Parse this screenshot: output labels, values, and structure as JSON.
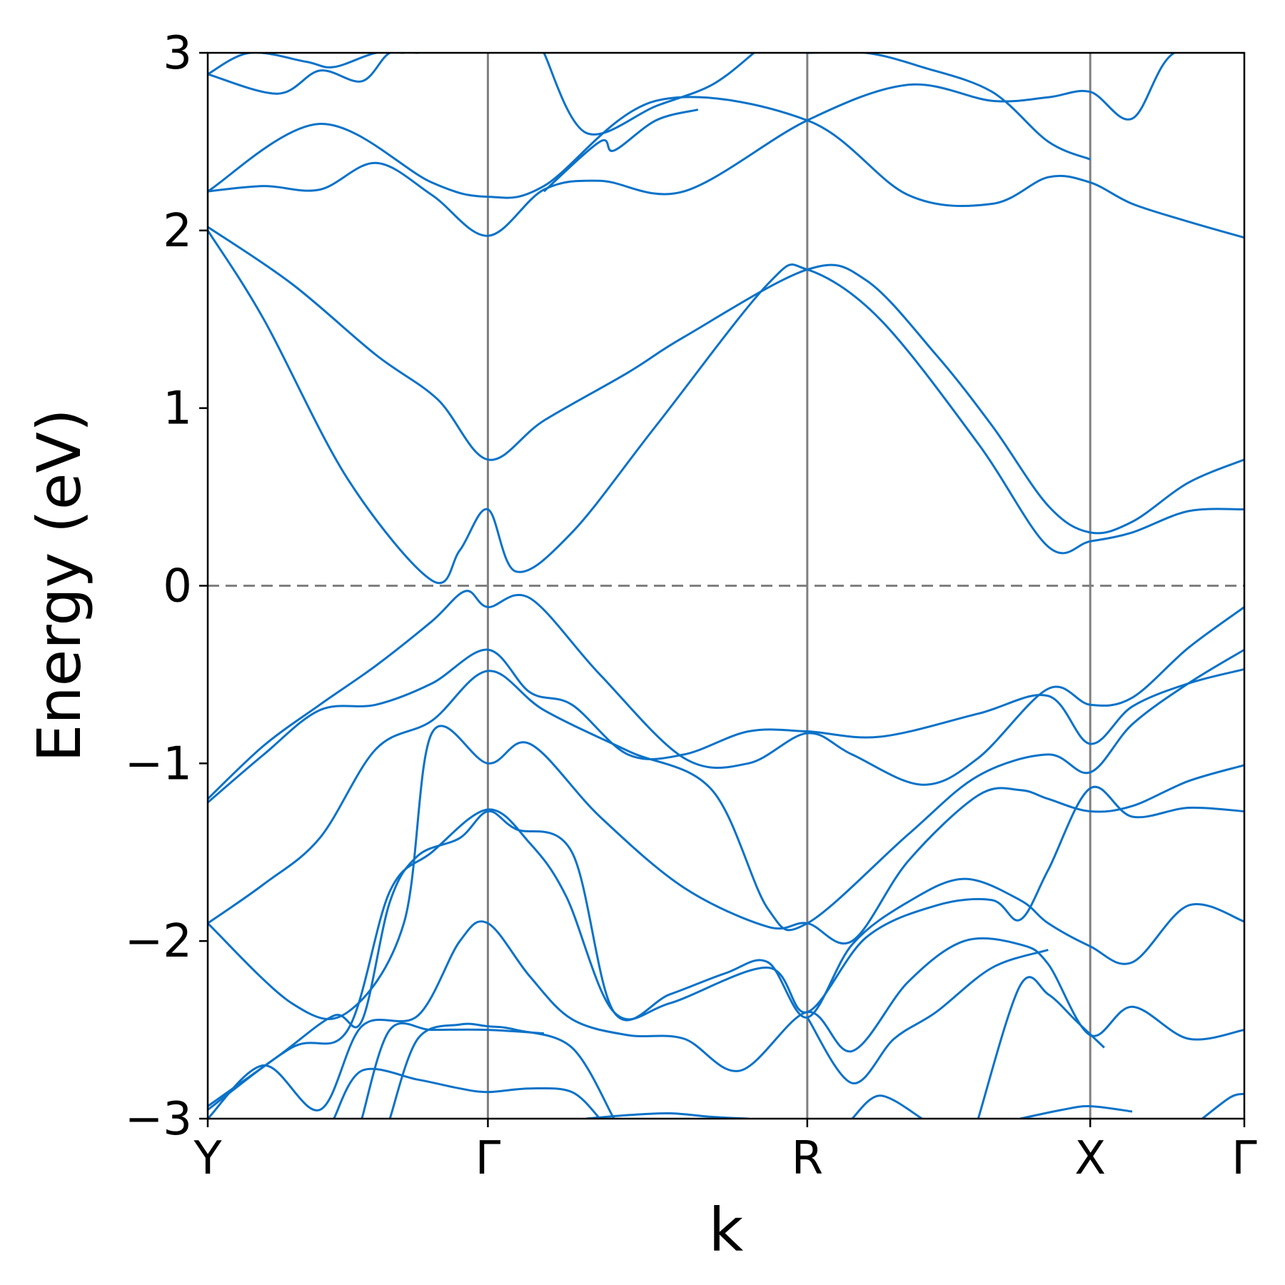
{
  "chart_data": {
    "type": "line",
    "title": "",
    "xlabel": "k",
    "ylabel": "Energy (eV)",
    "ylim": [
      -3,
      3
    ],
    "y_ticks": [
      3,
      2,
      1,
      0,
      -1,
      -2,
      -3
    ],
    "y_tick_labels": [
      "3",
      "2",
      "1",
      "0",
      "−1",
      "−2",
      "−3"
    ],
    "k_path": [
      "Y",
      "Γ",
      "R",
      "X",
      "Γ"
    ],
    "k_positions": [
      0,
      1,
      2.14,
      3.15,
      3.7
    ],
    "fermi_level": 0,
    "grid": "vertical lines at high-symmetry points",
    "colors": {
      "bands": "#0a72c8",
      "symmetry_lines": "#808080",
      "fermi_line": "#808080"
    },
    "bands": [
      {
        "name": "",
        "x": [
          0,
          0.3,
          0.6,
          0.82,
          1,
          1.2,
          1.5,
          1.7,
          2.14,
          2.35,
          2.6,
          2.8,
          3.0,
          3.15,
          3.3,
          3.5,
          3.7
        ],
        "y": [
          2.02,
          1.7,
          1.3,
          1.05,
          0.71,
          0.93,
          1.2,
          1.4,
          1.78,
          1.72,
          1.3,
          0.9,
          0.45,
          0.3,
          0.36,
          0.58,
          0.71
        ]
      },
      {
        "name": "",
        "x": [
          0,
          0.2,
          0.5,
          0.8,
          0.9,
          1,
          1.1,
          1.3,
          1.6,
          2.0,
          2.14,
          2.4,
          2.75,
          3.0,
          3.15,
          3.3,
          3.5,
          3.7
        ],
        "y": [
          2.0,
          1.5,
          0.6,
          0.03,
          0.2,
          0.43,
          0.08,
          0.3,
          0.9,
          1.7,
          1.78,
          1.5,
          0.8,
          0.22,
          0.25,
          0.3,
          0.42,
          0.43
        ]
      },
      {
        "name": "",
        "x": [
          0,
          0.4,
          0.8,
          1,
          1.2,
          1.6,
          2.14,
          2.5,
          2.8,
          3.0,
          3.15,
          3.3,
          3.5,
          3.7
        ],
        "y": [
          2.22,
          2.6,
          2.27,
          2.19,
          2.25,
          2.73,
          2.62,
          2.2,
          2.15,
          2.3,
          2.27,
          2.15,
          2.05,
          1.96
        ]
      },
      {
        "name": "",
        "x": [
          0,
          0.2,
          0.4,
          0.6,
          0.8,
          1,
          1.2,
          1.4,
          1.7,
          2.14,
          2.5,
          2.8,
          3.0,
          3.15,
          3.3,
          3.45,
          3.7
        ],
        "y": [
          2.22,
          2.25,
          2.23,
          2.38,
          2.2,
          1.97,
          2.23,
          2.28,
          2.22,
          2.62,
          2.82,
          2.73,
          2.75,
          2.78,
          2.63,
          3.0,
          3.0
        ]
      },
      {
        "name": "",
        "x": [
          0,
          0.2,
          0.4,
          0.6,
          0.8,
          1,
          1.15,
          1.3,
          1.5,
          1.7,
          1.93,
          2.14,
          2.4,
          2.75,
          3.0,
          3.15,
          3.3,
          3.5,
          3.7
        ],
        "y": [
          -1.22,
          -0.95,
          -0.7,
          -0.67,
          -0.55,
          -0.36,
          -0.6,
          -0.67,
          -0.95,
          -0.95,
          -0.82,
          -0.82,
          -0.85,
          -0.72,
          -0.62,
          -0.89,
          -0.68,
          -0.55,
          -0.47
        ]
      },
      {
        "name": "",
        "x": [
          0,
          0.2,
          0.4,
          0.6,
          0.8,
          0.92,
          1,
          1.15,
          1.4,
          1.7,
          1.93,
          2.14,
          2.3,
          2.55,
          2.75,
          3.0,
          3.15,
          3.3,
          3.5,
          3.7
        ],
        "y": [
          -1.2,
          -0.9,
          -0.67,
          -0.45,
          -0.2,
          -0.03,
          -0.12,
          -0.07,
          -0.5,
          -0.97,
          -1.0,
          -0.83,
          -0.95,
          -1.12,
          -0.97,
          -0.58,
          -0.67,
          -0.63,
          -0.35,
          -0.12
        ]
      },
      {
        "name": "",
        "x": [
          0,
          0.2,
          0.4,
          0.6,
          0.8,
          1,
          1.2,
          1.5,
          1.8,
          2.0,
          2.14,
          2.5,
          2.75,
          3.0,
          3.15,
          3.3,
          3.5,
          3.7
        ],
        "y": [
          -1.9,
          -1.68,
          -1.42,
          -0.92,
          -0.76,
          -0.48,
          -0.7,
          -0.93,
          -1.15,
          -1.82,
          -1.9,
          -1.4,
          -1.07,
          -0.95,
          -1.05,
          -0.78,
          -0.55,
          -0.36
        ]
      },
      {
        "name": "",
        "x": [
          0,
          0.3,
          0.5,
          0.7,
          0.8,
          1,
          1.15,
          1.4,
          1.7,
          2.0,
          2.14,
          2.3,
          2.5,
          2.75,
          2.9,
          3.0,
          3.15,
          3.3,
          3.5,
          3.7
        ],
        "y": [
          -1.9,
          -2.35,
          -2.4,
          -1.9,
          -0.83,
          -1.0,
          -0.89,
          -1.3,
          -1.7,
          -1.92,
          -1.9,
          -2.0,
          -1.55,
          -1.18,
          -1.15,
          -1.2,
          -1.27,
          -1.24,
          -1.1,
          -1.01
        ]
      },
      {
        "name": "",
        "x": [
          0,
          0.3,
          0.5,
          0.65,
          0.8,
          1,
          1.15,
          1.28,
          1.45,
          1.65,
          2.0,
          2.14,
          2.35,
          2.6,
          2.8,
          2.9,
          3.0,
          3.15,
          3.3,
          3.5,
          3.7
        ],
        "y": [
          -2.95,
          -2.6,
          -2.5,
          -1.72,
          -1.5,
          -1.26,
          -1.45,
          -1.75,
          -2.4,
          -2.35,
          -2.15,
          -2.4,
          -1.98,
          -1.8,
          -1.77,
          -1.88,
          -1.6,
          -1.14,
          -1.3,
          -1.25,
          -1.27
        ]
      },
      {
        "name": "",
        "x": [
          0,
          0.25,
          0.45,
          0.55,
          0.65,
          0.75,
          0.9,
          1,
          1.1,
          1.3,
          1.45,
          1.65,
          1.85,
          2.0,
          2.14,
          2.3,
          2.5,
          2.7,
          2.9,
          3.0,
          3.15,
          3.3,
          3.5,
          3.7
        ],
        "y": [
          -2.93,
          -2.65,
          -2.42,
          -2.45,
          -1.78,
          -1.52,
          -1.42,
          -1.27,
          -1.37,
          -1.5,
          -2.4,
          -2.3,
          -2.18,
          -2.12,
          -2.43,
          -2.02,
          -1.78,
          -1.65,
          -1.77,
          -1.9,
          -2.03,
          -2.12,
          -1.8,
          -1.89
        ]
      },
      {
        "name": "",
        "x": [
          0,
          0.2,
          0.4,
          0.55,
          0.75,
          0.9,
          1,
          1.15,
          1.3,
          1.5,
          1.7,
          1.9,
          2.14,
          2.3,
          2.5,
          2.7,
          2.9,
          3.0,
          3.15,
          3.3,
          3.5,
          3.7
        ],
        "y": [
          -3.0,
          -2.7,
          -2.95,
          -2.48,
          -2.42,
          -2.0,
          -1.9,
          -2.2,
          -2.44,
          -2.53,
          -2.55,
          -2.73,
          -2.4,
          -2.62,
          -2.23,
          -2.0,
          -2.02,
          -2.13,
          -2.53,
          -2.37,
          -2.55,
          -2.5
        ]
      },
      {
        "name": "",
        "x": [
          0.65,
          0.75,
          0.9,
          1,
          1.1,
          1.3,
          1.45
        ],
        "y": [
          -3.0,
          -2.55,
          -2.47,
          -2.48,
          -2.5,
          -2.6,
          -3.0
        ]
      },
      {
        "name": "",
        "x": [
          0.45,
          0.55,
          0.75,
          0.9,
          1,
          1.15,
          1.3,
          1.4
        ],
        "y": [
          -3.0,
          -2.73,
          -2.78,
          -2.83,
          -2.85,
          -2.83,
          -2.85,
          -3.0
        ]
      },
      {
        "name": "",
        "x": [
          0.55,
          0.65,
          0.8,
          1.0,
          1.2
        ],
        "y": [
          -3.0,
          -2.5,
          -2.5,
          -2.5,
          -2.52
        ]
      },
      {
        "name": "",
        "x": [
          2.14,
          2.3,
          2.45,
          2.6,
          2.8,
          3.0
        ],
        "y": [
          -2.43,
          -2.8,
          -2.55,
          -2.4,
          -2.15,
          -2.05
        ]
      },
      {
        "name": "",
        "x": [
          2.75,
          2.9,
          3.0,
          3.1,
          3.2
        ],
        "y": [
          -3.0,
          -2.25,
          -2.3,
          -2.45,
          -2.6
        ]
      },
      {
        "name": "",
        "x": [
          1.35,
          1.5,
          1.65,
          1.8,
          1.93
        ],
        "y": [
          -3.0,
          -2.98,
          -2.97,
          -2.99,
          -3.0
        ]
      },
      {
        "name": "",
        "x": [
          2.3,
          2.4,
          2.55
        ],
        "y": [
          -3.0,
          -2.87,
          -3.0
        ]
      },
      {
        "name": "",
        "x": [
          2.9,
          3.05,
          3.15,
          3.3
        ],
        "y": [
          -3.0,
          -2.95,
          -2.93,
          -2.96
        ]
      },
      {
        "name": "",
        "x": [
          3.55,
          3.65,
          3.7
        ],
        "y": [
          -3.0,
          -2.88,
          -2.86
        ]
      },
      {
        "name": "",
        "x": [
          0,
          0.25,
          0.4,
          0.55,
          0.65,
          0.75
        ],
        "y": [
          2.88,
          2.77,
          2.9,
          2.84,
          3.0,
          3.0
        ]
      },
      {
        "name": "",
        "x": [
          0,
          0.15,
          0.35,
          0.45,
          0.6,
          0.7
        ],
        "y": [
          2.88,
          3.0,
          2.95,
          2.92,
          3.0,
          3.0
        ]
      },
      {
        "name": "",
        "x": [
          1.2,
          1.35,
          1.6,
          1.8,
          1.95
        ],
        "y": [
          3.0,
          2.55,
          2.7,
          2.82,
          3.0
        ]
      },
      {
        "name": "",
        "x": [
          1.2,
          1.4,
          1.45,
          1.6,
          1.75
        ],
        "y": [
          2.22,
          2.5,
          2.45,
          2.62,
          2.68
        ]
      },
      {
        "name": "",
        "x": [
          2.14,
          2.35,
          2.55,
          2.8,
          3.0,
          3.15
        ],
        "y": [
          3.0,
          3.0,
          2.92,
          2.78,
          2.5,
          2.4
        ]
      }
    ]
  }
}
